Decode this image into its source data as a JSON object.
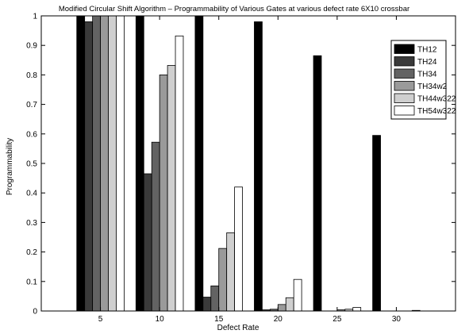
{
  "chart_data": {
    "type": "bar",
    "title": "Modified Circular Shift Algorithm – Programmability of Various Gates at various defect rate 6X10 crossbar",
    "xlabel": "Defect Rate",
    "ylabel": "Programmability",
    "categories": [
      "5",
      "10",
      "15",
      "20",
      "25",
      "30"
    ],
    "ylim": [
      0,
      1
    ],
    "yticks": [
      "0",
      "0.1",
      "0.2",
      "0.3",
      "0.4",
      "0.5",
      "0.6",
      "0.7",
      "0.8",
      "0.9",
      "1"
    ],
    "grid": false,
    "legend_position": "top-right",
    "series": [
      {
        "name": "TH12",
        "color": "#000000",
        "values": [
          1.0,
          1.0,
          1.0,
          0.98,
          0.865,
          0.595
        ]
      },
      {
        "name": "TH24",
        "color": "#3a3a3a",
        "values": [
          0.98,
          0.465,
          0.047,
          0.004,
          0.0,
          0.0
        ]
      },
      {
        "name": "TH34",
        "color": "#636363",
        "values": [
          1.0,
          0.572,
          0.085,
          0.006,
          0.0,
          0.0
        ]
      },
      {
        "name": "TH34w2",
        "color": "#9a9a9a",
        "values": [
          1.0,
          0.8,
          0.212,
          0.022,
          0.004,
          0.0
        ]
      },
      {
        "name": "TH44w322",
        "color": "#cfcfcf",
        "values": [
          1.0,
          0.832,
          0.265,
          0.045,
          0.006,
          0.0
        ]
      },
      {
        "name": "TH54w322",
        "color": "#ffffff",
        "values": [
          1.0,
          0.932,
          0.42,
          0.107,
          0.012,
          0.002
        ]
      }
    ]
  }
}
